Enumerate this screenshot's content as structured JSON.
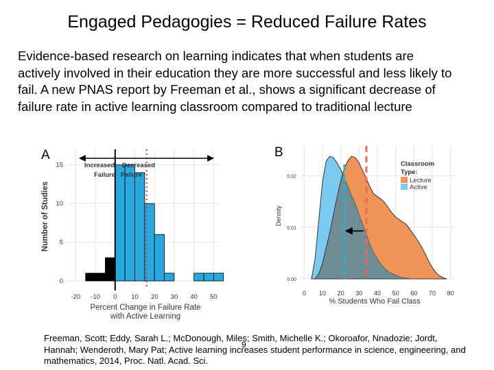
{
  "slide": {
    "title": "Engaged Pedagogies = Reduced Failure Rates",
    "body": "Evidence-based research on learning indicates that when students are actively involved in their education they are more successful and less likely to fail. A new PNAS report by Freeman et al., shows a significant decrease of failure rate in active learning classroom compared to traditional lecture",
    "citation": "Freeman, Scott; Eddy, Sarah L.; McDonough, Miles; Smith, Michelle K.; Okoroafor, Nnadozie; Jordt, Hannah; Wenderoth, Mary Pat; Active learning increases student performance in science, engineering, and mathematics, 2014, Proc. Natl. Acad. Sci.",
    "slide_number": "9"
  },
  "chart_data": [
    {
      "type": "bar",
      "panel": "A",
      "xlabel": "Percent Change in Failure Rate with Active Learning",
      "ylabel": "Number of Studies",
      "x_ticks": [
        "-20",
        "-10",
        "0",
        "10",
        "20",
        "30",
        "40",
        "50"
      ],
      "y_ticks": [
        "0",
        "5",
        "10",
        "15"
      ],
      "xlim": [
        -25,
        53
      ],
      "ylim": [
        0,
        17
      ],
      "annotations": [
        "Increased",
        "Decreased",
        "Failure",
        "Failure"
      ],
      "bins": [
        {
          "x0": -15,
          "x1": -10,
          "value": 1,
          "group": "increased"
        },
        {
          "x0": -10,
          "x1": -5,
          "value": 1,
          "group": "increased"
        },
        {
          "x0": -5,
          "x1": 0,
          "value": 3,
          "group": "increased"
        },
        {
          "x0": 0,
          "x1": 5,
          "value": 15,
          "group": "decreased"
        },
        {
          "x0": 5,
          "x1": 10,
          "value": 15,
          "group": "decreased"
        },
        {
          "x0": 10,
          "x1": 15,
          "value": 14,
          "group": "decreased"
        },
        {
          "x0": 15,
          "x1": 20,
          "value": 10,
          "group": "decreased"
        },
        {
          "x0": 20,
          "x1": 25,
          "value": 6,
          "group": "decreased"
        },
        {
          "x0": 25,
          "x1": 30,
          "value": 1,
          "group": "decreased"
        },
        {
          "x0": 40,
          "x1": 45,
          "value": 1,
          "group": "decreased"
        },
        {
          "x0": 45,
          "x1": 50,
          "value": 1,
          "group": "decreased"
        },
        {
          "x0": 50,
          "x1": 55,
          "value": 1,
          "group": "decreased"
        }
      ],
      "mean_line_x": 16,
      "colors": {
        "increased": "#000000",
        "decreased": "#29a8e0",
        "mean_line": "#e03030"
      }
    },
    {
      "type": "area",
      "panel": "B",
      "xlabel": "% Students Who Fail Class",
      "ylabel": "Density",
      "x_ticks": [
        "0",
        "10",
        "20",
        "30",
        "40",
        "50",
        "60",
        "70",
        "80"
      ],
      "y_ticks": [
        "0.00",
        "0.01",
        "0.02"
      ],
      "xlim": [
        -2,
        82
      ],
      "ylim": [
        0,
        0.0258
      ],
      "legend_title": "Classroom Type:",
      "legend_position": "top-right",
      "series": [
        {
          "name": "Lecture",
          "color": "#f0955a",
          "mean": 34,
          "x": [
            6,
            8,
            10,
            12,
            14,
            16,
            18,
            20,
            22,
            24,
            26,
            28,
            30,
            32,
            34,
            36,
            38,
            40,
            42,
            44,
            46,
            48,
            50,
            52,
            54,
            56,
            58,
            60,
            62,
            64,
            66,
            68,
            70,
            72,
            74,
            76,
            78
          ],
          "values": [
            0.0,
            0.001,
            0.003,
            0.006,
            0.009,
            0.0125,
            0.016,
            0.019,
            0.0215,
            0.023,
            0.0238,
            0.0235,
            0.0225,
            0.021,
            0.0195,
            0.0178,
            0.0165,
            0.016,
            0.0155,
            0.0148,
            0.0138,
            0.0128,
            0.012,
            0.0115,
            0.011,
            0.0105,
            0.0095,
            0.0085,
            0.0075,
            0.0063,
            0.005,
            0.0035,
            0.0022,
            0.0012,
            0.0006,
            0.0002,
            0.0
          ]
        },
        {
          "name": "Active",
          "color": "#7dcaf0",
          "mean": 22,
          "x": [
            4,
            6,
            8,
            10,
            12,
            14,
            16,
            18,
            20,
            22,
            24,
            26,
            28,
            30,
            32,
            34,
            36,
            38,
            40,
            42,
            44,
            46,
            48,
            50,
            52,
            54,
            56,
            58,
            60
          ],
          "values": [
            0.0,
            0.004,
            0.0115,
            0.0188,
            0.0228,
            0.0238,
            0.0235,
            0.0225,
            0.0212,
            0.0195,
            0.0178,
            0.016,
            0.0145,
            0.0125,
            0.0105,
            0.0085,
            0.0065,
            0.005,
            0.0038,
            0.0028,
            0.002,
            0.0014,
            0.001,
            0.0007,
            0.0004,
            0.0002,
            0.0001,
            0.0,
            0.0
          ]
        }
      ],
      "overlap_color": "#708c94",
      "arrow": {
        "from": 34,
        "to": 22,
        "y": 0.0093
      }
    }
  ]
}
